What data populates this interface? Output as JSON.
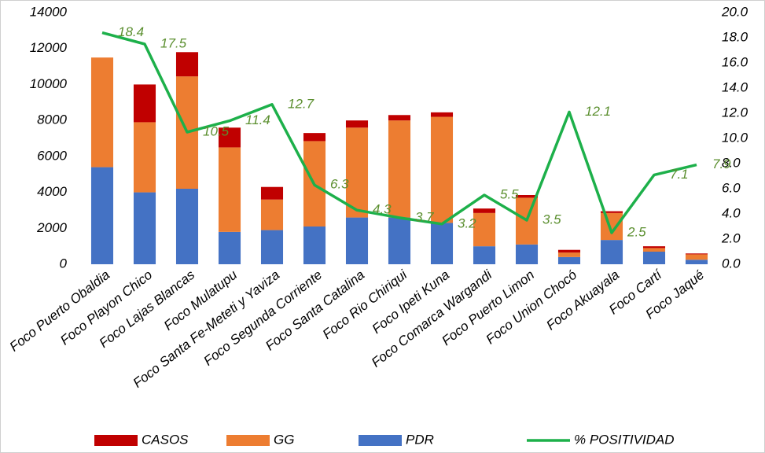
{
  "chart_data": {
    "type": "bar",
    "categories": [
      "Foco Puerto Obaldia",
      "Foco Playon Chico",
      "Foco Lajas Blancas",
      "Foco Mulatupu",
      "Foco Santa Fe-Meteti y Yaviza",
      "Foco Segunda Corriente",
      "Foco Santa Catalina",
      "Foco Rio Chiriqui",
      "Foco Ipeti Kuna",
      "Foco Comarca Wargandi",
      "Foco Puerto Limon",
      "Foco Union Chocó",
      "Foco Akuayala",
      "Foco Cartí",
      "Foco Jaqué"
    ],
    "series": [
      {
        "name": "CASOS",
        "color": "#c00000",
        "type": "bar",
        "values": [
          0,
          2100,
          1350,
          1100,
          700,
          450,
          400,
          300,
          250,
          250,
          150,
          150,
          100,
          100,
          50
        ]
      },
      {
        "name": "GG",
        "color": "#ed7d31",
        "type": "bar",
        "values": [
          6100,
          3900,
          6250,
          4700,
          1700,
          4750,
          5000,
          5400,
          5900,
          1850,
          2600,
          250,
          1500,
          200,
          300
        ]
      },
      {
        "name": "PDR",
        "color": "#4472c4",
        "type": "bar",
        "values": [
          5400,
          4000,
          4200,
          1800,
          1900,
          2100,
          2600,
          2600,
          2300,
          1000,
          1100,
          400,
          1350,
          700,
          250
        ]
      },
      {
        "name": "% POSITIVIDAD",
        "color": "#1db04a",
        "type": "line",
        "axis": "y2",
        "values": [
          18.4,
          17.5,
          10.5,
          11.4,
          12.7,
          6.3,
          4.3,
          3.7,
          3.2,
          5.5,
          3.5,
          12.1,
          2.5,
          7.1,
          7.9
        ]
      }
    ],
    "ylim": [
      0,
      14000
    ],
    "yticks": [
      0,
      2000,
      4000,
      6000,
      8000,
      10000,
      12000,
      14000
    ],
    "y2lim": [
      0,
      20
    ],
    "y2ticks": [
      {
        "value": 0,
        "label": "0.0"
      },
      {
        "value": 2,
        "label": "2.0"
      },
      {
        "value": 4,
        "label": "4.0"
      },
      {
        "value": 6,
        "label": "6.0"
      },
      {
        "value": 8,
        "label": "8.0"
      },
      {
        "value": 10,
        "label": "10.0"
      },
      {
        "value": 12,
        "label": "12.0"
      },
      {
        "value": 14,
        "label": "14.0"
      },
      {
        "value": 16,
        "label": "16.0"
      },
      {
        "value": 18,
        "label": "18.0"
      },
      {
        "value": 20,
        "label": "20.0"
      }
    ],
    "legend": "bottom",
    "grid": false
  }
}
